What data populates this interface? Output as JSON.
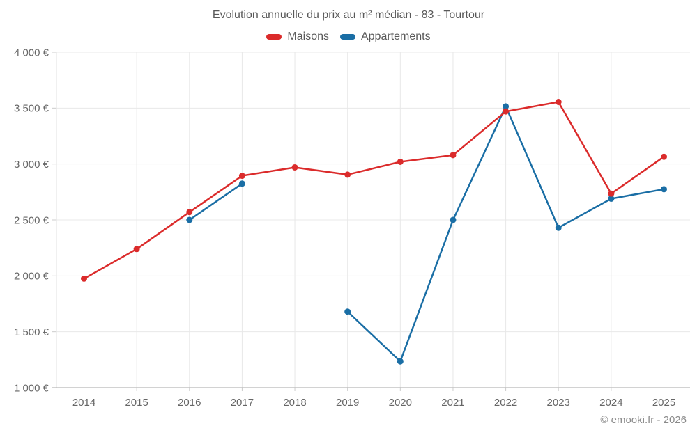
{
  "header": {
    "title": "Evolution annuelle du prix au m² médian - 83 - Tourtour"
  },
  "watermark": "© emooki.fr - 2026",
  "colors": {
    "maisons": "#db2b2b",
    "appartements": "#1a6ea5",
    "gridline": "#e8e8e8",
    "axis_left": "#e0e0e0",
    "axis_bottom": "#a5a5a5",
    "tick": "#cccccc"
  },
  "chart_data": {
    "type": "line",
    "title": "Evolution annuelle du prix au m² médian - 83 - Tourtour",
    "x": [
      2014,
      2015,
      2016,
      2017,
      2018,
      2019,
      2020,
      2021,
      2022,
      2023,
      2024,
      2025
    ],
    "xtick_labels": [
      "2014",
      "2015",
      "2016",
      "2017",
      "2018",
      "2019",
      "2020",
      "2021",
      "2022",
      "2023",
      "2024",
      "2025"
    ],
    "series": [
      {
        "name": "Maisons",
        "color": "#db2b2b",
        "values": [
          1975,
          2240,
          2570,
          2895,
          2970,
          2905,
          3020,
          3080,
          3470,
          3555,
          2735,
          3065
        ]
      },
      {
        "name": "Appartements",
        "color": "#1a6ea5",
        "values": [
          null,
          null,
          2500,
          2825,
          null,
          1680,
          1235,
          2500,
          3515,
          2430,
          2690,
          2775
        ]
      }
    ],
    "xlabel": "",
    "ylabel": "",
    "ylim": [
      1000,
      4000
    ],
    "yticks": [
      {
        "value": 4000,
        "label": "4 000 €"
      },
      {
        "value": 3500,
        "label": "3 500 €"
      },
      {
        "value": 3000,
        "label": "3 000 €"
      },
      {
        "value": 2500,
        "label": "2 500 €"
      },
      {
        "value": 2000,
        "label": "2 000 €"
      },
      {
        "value": 1500,
        "label": "1 500 €"
      },
      {
        "value": 1000,
        "label": "1 000 €"
      }
    ],
    "grid": true,
    "legend_position": "top"
  }
}
